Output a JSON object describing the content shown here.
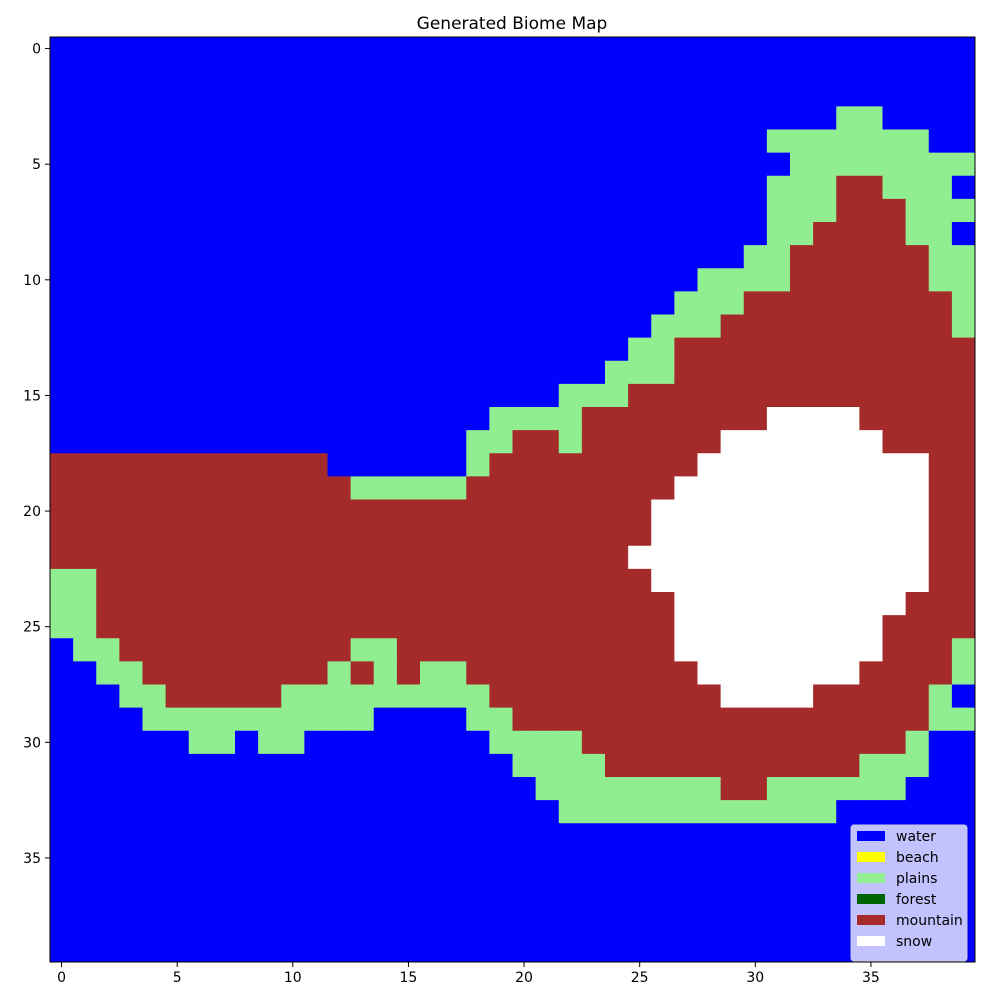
{
  "chart_data": {
    "type": "heatmap",
    "title": "Generated Biome Map",
    "xlabel": "",
    "ylabel": "",
    "grid": false,
    "width": 40,
    "height": 40,
    "xlim": [
      -0.5,
      39.5
    ],
    "ylim": [
      39.5,
      -0.5
    ],
    "x_ticks": [
      "0",
      "5",
      "10",
      "15",
      "20",
      "25",
      "30",
      "35"
    ],
    "y_ticks": [
      "0",
      "5",
      "10",
      "15",
      "20",
      "25",
      "30",
      "35"
    ],
    "legend_position": "bottom-right",
    "categories": [
      {
        "code": "W",
        "name": "water",
        "color": "#0000ff"
      },
      {
        "code": "B",
        "name": "beach",
        "color": "#ffff00"
      },
      {
        "code": "P",
        "name": "plains",
        "color": "#90ee90"
      },
      {
        "code": "F",
        "name": "forest",
        "color": "#006400"
      },
      {
        "code": "M",
        "name": "mountain",
        "color": "#a52a2a"
      },
      {
        "code": "S",
        "name": "snow",
        "color": "#ffffff"
      }
    ],
    "grid_rows": [
      "WWWWWWWWWWWWWWWWWWWWWWWWWWWWWWWWWWWWWWWW",
      "WWWWWWWWWWWWWWWWWWWWWWWWWWWWWWWWWWWWWWWW",
      "WWWWWWWWWWWWWWWWWWWWWWWWWWWWWWWWWWWWWWWW",
      "WWWWWWWWWWWWWWWWWWWWWWWWWWWWWWWWWWPPWWWW",
      "WWWWWWWWWWWWWWWWWWWWWWWWWWWWWWWPPPPPPPWW",
      "WWWWWWWWWWWWWWWWWWWWWWWWWWWWWWWWPPPPPPPPW",
      "WWWWWWWWWWWWWWWWWWWWWWWWWWWWWWWPPPMMPPPW",
      "WWWWWWWWWWWWWWWWWWWWWWWWWWWWWWWPPPMMMPPP",
      "WWWWWWWWWWWWWWWWWWWWWWWWWWWWWWWPPMMMMPPW",
      "WWWWWWWWWWWWWWWWWWWWWWWWWWWWWWPPMMMMMMPP",
      "WWWWWWWWWWWWWWWWWWWWWWWWWWWWPPPPMMMMMMPP",
      "WWWWWWWWWWWWWWWWWWWWWWWWWWWPPPMMMMMMMMMP",
      "WWWWWWWWWWWWWWWWWWWWWWWWWWPPPMMMMMMMMMMP",
      "WWWWWWWWWWWWWWWWWWWWWWWWWPPMMMMMMMMMMMMM",
      "WWWWWWWWWWWWWWWWWWWWWWWWPPPMMMMMMMMMMMMM",
      "WWWWWWWWWWWWWWWWWWWWWWPPPMMMMMMMMMMMMMMM",
      "WWWWWWWWWWWWWWWWWWWPPPPMMMMMMMMSSSSMMMMM",
      "WWWWWWWWWWWWWWWWWWPPMMPMMMMMMSSSSSSSMMMM",
      "MMMMMMMMMMMMWWWWWWPMMMMMMMMMSSSSSSSSSSMM",
      "MMMMMMMMMMMMMPPPPPMMMMMMMMMSSSSSSSSSSSMM",
      "MMMMMMMMMMMMMMMMMMMMMMMMMMSSSSSSSSSSSSMM",
      "MMMMMMMMMMMMMMMMMMMMMMMMMMSSSSSSSSSSSSMM",
      "MMMMMMMMMMMMMMMMMMMMMMMMMSSSSSSSSSSSSSMM",
      "PPMMMMMMMMMMMMMMMMMMMMMMMMSSSSSSSSSSSSMM",
      "PPMMMMMMMMMMMMMMMMMMMMMMMMMSSSSSSSSSSMMM",
      "PPMMMMMMMMMMMMMMMMMMMMMMMMMSSSSSSSSSMMMM",
      "WPPMMMMMMMMMMPPMMMMMMMMMMMMSSSSSSSSSMMMP",
      "WWPPMMMMMMMMPMPMPPMMMMMMMMMMSSSSSSSMMMMP",
      "WWWPPMMMMMPPPPPPPPPMMMMMMMMMMSSSSMMMMMPW",
      "WWWWPPPPPPPPPPWWWWPPMMMMMMMMMMMMMMMMMMPPW",
      "WWWWWWPPWPPWWWWWWWWPPPPMMMMMMMMMMMMMMPWW",
      "WWWWWWWWWWWWWWWWWWWWPPPPMMMMMMMMMMMPPPWWW",
      "WWWWWWWWWWWWWWWWWWWWWPPPPPPPPMMPPPPPPWWWW",
      "WWWWWWWWWWWWWWWWWWWWWWPPPPPPPPPPPPWWWWWWW",
      "WWWWWWWWWWWWWWWWWWWWWWWWWWWWWWWWWWWWWWWW",
      "WWWWWWWWWWWWWWWWWWWWWWWWWWWWWWWWWWWWWWWW",
      "WWWWWWWWWWWWWWWWWWWWWWWWWWWWWWWWWWWWWWWW",
      "WWWWWWWWWWWWWWWWWWWWWWWWWWWWWWWWWWWWWWWW",
      "WWWWWWWWWWWWWWWWWWWWWWWWWWWWWWWWWWWWWWWW",
      "WWWWWWWWWWWWWWWWWWWWWWWWWWWWWWWWWWWWWWWW"
    ]
  }
}
